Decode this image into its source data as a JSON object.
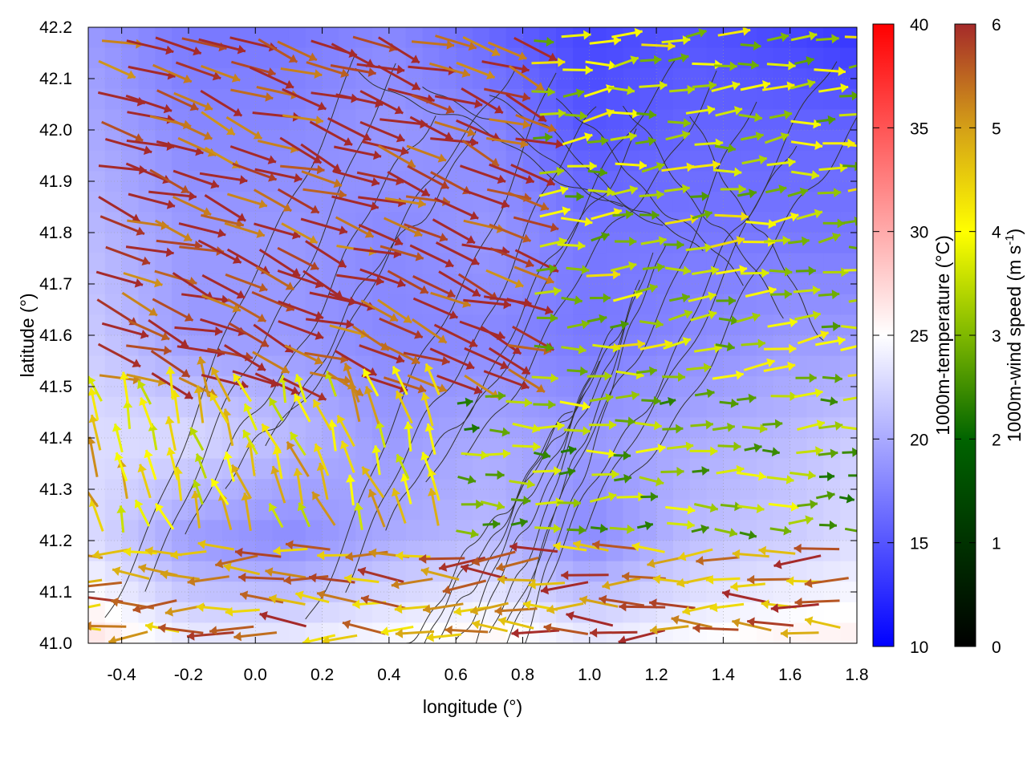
{
  "chart_data": {
    "type": "heatmap",
    "xlabel": "longitude (°)",
    "ylabel": "latitude (°)",
    "xlim": [
      -0.5,
      1.8
    ],
    "ylim": [
      41.0,
      42.2
    ],
    "x_ticks": [
      -0.4,
      -0.2,
      0.0,
      0.2,
      0.4,
      0.6,
      0.8,
      1.0,
      1.2,
      1.4,
      1.6,
      1.8
    ],
    "y_ticks": [
      41.0,
      41.1,
      41.2,
      41.3,
      41.4,
      41.5,
      41.6,
      41.7,
      41.8,
      41.9,
      42.0,
      42.1,
      42.2
    ],
    "x_tick_labels": [
      "-0.4",
      "-0.2",
      "0.0",
      "0.2",
      "0.4",
      "0.6",
      "0.8",
      "1.0",
      "1.2",
      "1.4",
      "1.6",
      "1.8"
    ],
    "y_tick_labels": [
      "41.0",
      "41.1",
      "41.2",
      "41.3",
      "41.4",
      "41.5",
      "41.6",
      "41.7",
      "41.8",
      "41.9",
      "42.0",
      "42.1",
      "42.2"
    ],
    "grid": true,
    "temperature_field": {
      "colorbar_label": "1000m-temperature (°C)",
      "range": [
        10,
        40
      ],
      "ticks": [
        10,
        15,
        20,
        25,
        30,
        35,
        40
      ],
      "tick_labels": [
        "10",
        "15",
        "20",
        "25",
        "30",
        "35",
        "40"
      ],
      "colors": [
        "#0000ff",
        "#ffffff",
        "#ff0000"
      ],
      "lon": [
        -0.5,
        -0.2,
        0.1,
        0.4,
        0.7,
        1.0,
        1.3,
        1.6,
        1.8
      ],
      "lat": [
        42.2,
        42.0,
        41.8,
        41.6,
        41.4,
        41.2,
        41.0
      ],
      "values": [
        [
          19,
          17,
          17,
          18,
          16,
          14,
          15,
          14,
          13
        ],
        [
          20,
          18,
          18,
          19,
          18,
          15,
          16,
          16,
          16
        ],
        [
          21,
          19,
          19,
          18,
          19,
          17,
          17,
          17,
          17
        ],
        [
          22,
          19,
          19,
          18,
          18,
          17,
          18,
          19,
          19
        ],
        [
          23,
          23,
          21,
          19,
          20,
          19,
          20,
          21,
          22
        ],
        [
          23,
          19,
          18,
          20,
          21,
          18,
          21,
          22,
          23
        ],
        [
          27,
          24,
          24,
          25,
          26,
          24,
          25,
          26,
          26
        ]
      ]
    },
    "wind_field": {
      "colorbar_label": "1000m-wind speed (m s",
      "colorbar_label_superscript": "-1",
      "colorbar_label_end": ")",
      "range": [
        0,
        6
      ],
      "ticks": [
        0,
        1,
        2,
        3,
        4,
        5,
        6
      ],
      "tick_labels": [
        "0",
        "1",
        "2",
        "3",
        "4",
        "5",
        "6"
      ],
      "colors": [
        "#000000",
        "#006400",
        "#7fb800",
        "#ffff00",
        "#d4a017",
        "#a52a2a"
      ],
      "regions": [
        {
          "region": "northwest",
          "lon": [
            -0.5,
            0.8
          ],
          "lat": [
            41.5,
            42.2
          ],
          "direction_deg": -20,
          "speed": 6
        },
        {
          "region": "northeast",
          "lon": [
            0.8,
            1.8
          ],
          "lat": [
            41.5,
            42.2
          ],
          "direction_deg": 5,
          "speed": 3
        },
        {
          "region": "southwest",
          "lon": [
            -0.5,
            0.6
          ],
          "lat": [
            41.2,
            41.5
          ],
          "direction_deg": 110,
          "speed": 4
        },
        {
          "region": "south",
          "lon": [
            -0.5,
            1.8
          ],
          "lat": [
            41.0,
            41.2
          ],
          "direction_deg": 180,
          "speed": 5
        }
      ]
    },
    "contours": {
      "type": "terrain",
      "color": "#333333"
    }
  }
}
